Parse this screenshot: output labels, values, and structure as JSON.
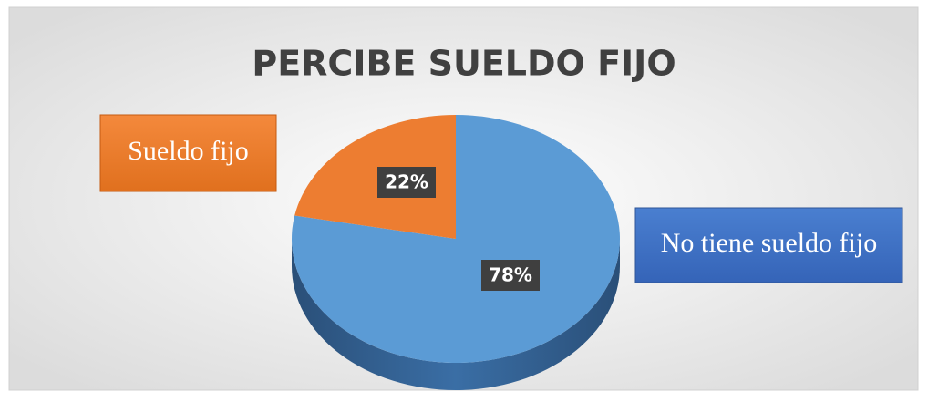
{
  "chart_data": {
    "type": "pie",
    "title": "PERCIBE SUELDO FIJO",
    "categories": [
      "No tiene sueldo fijo",
      "Sueldo fijo"
    ],
    "values": [
      78,
      22
    ],
    "value_labels": [
      "78%",
      "22%"
    ],
    "colors": [
      "#5b9bd5",
      "#ed7d31"
    ]
  }
}
